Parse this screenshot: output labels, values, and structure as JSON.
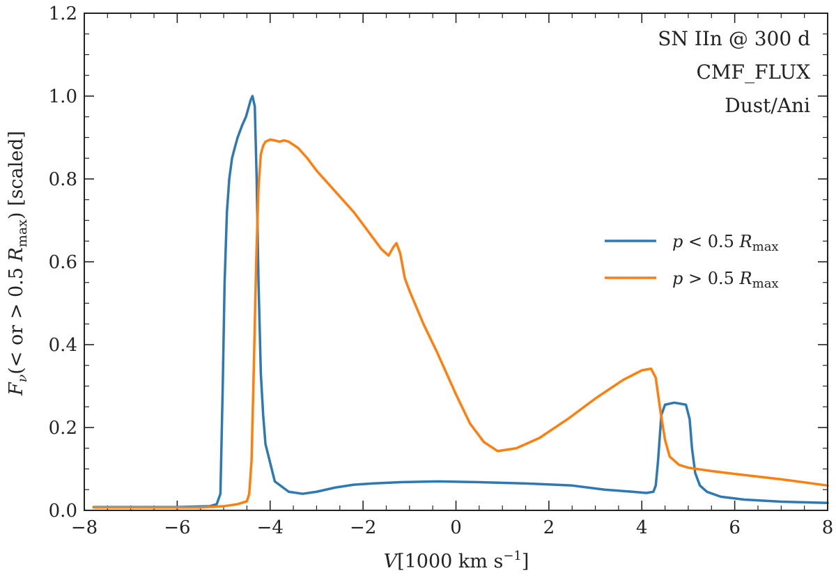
{
  "chart_data": {
    "type": "line",
    "title": "",
    "annotations": [
      "SN IIn @ 300 d",
      "CMF_FLUX",
      "Dust/Ani"
    ],
    "xlabel": {
      "symbol": "V",
      "text": "[1000 km s",
      "sup": "−1",
      "close": "]"
    },
    "ylabel": {
      "symbol": "F",
      "sub": "ν",
      "mid": "(< or > 0.5 ",
      "R": "R",
      "rsub": "max",
      "tail": ") [scaled]"
    },
    "xlim": [
      -8,
      8
    ],
    "ylim": [
      0,
      1.2
    ],
    "xticks": [
      -8,
      -6,
      -4,
      -2,
      0,
      2,
      4,
      6,
      8
    ],
    "xtick_labels": [
      "−8",
      "−6",
      "−4",
      "−2",
      "0",
      "2",
      "4",
      "6",
      "8"
    ],
    "yticks": [
      0.0,
      0.2,
      0.4,
      0.6,
      0.8,
      1.0,
      1.2
    ],
    "ytick_labels": [
      "0.0",
      "0.2",
      "0.4",
      "0.6",
      "0.8",
      "1.0",
      "1.2"
    ],
    "legend_position": "center-right",
    "series": [
      {
        "name": "p < 0.5 Rmax",
        "legend": {
          "p": "p",
          "rel": " < 0.5 ",
          "R": "R",
          "sub": "max"
        },
        "color": "#2e78b4",
        "x": [
          -7.8,
          -6.0,
          -5.3,
          -5.15,
          -5.07,
          -5.02,
          -4.98,
          -4.93,
          -4.88,
          -4.82,
          -4.75,
          -4.7,
          -4.6,
          -4.52,
          -4.47,
          -4.42,
          -4.38,
          -4.33,
          -4.29,
          -4.25,
          -4.2,
          -4.15,
          -4.1,
          -3.9,
          -3.6,
          -3.3,
          -3.0,
          -2.6,
          -2.2,
          -1.8,
          -1.2,
          -0.4,
          0.5,
          1.5,
          2.5,
          3.2,
          3.8,
          4.1,
          4.25,
          4.3,
          4.35,
          4.42,
          4.5,
          4.7,
          4.95,
          5.03,
          5.08,
          5.15,
          5.25,
          5.4,
          5.7,
          6.2,
          7.0,
          8.0
        ],
        "y": [
          0.008,
          0.008,
          0.01,
          0.015,
          0.04,
          0.3,
          0.55,
          0.72,
          0.8,
          0.85,
          0.88,
          0.9,
          0.93,
          0.95,
          0.97,
          0.99,
          1.0,
          0.975,
          0.8,
          0.55,
          0.33,
          0.23,
          0.16,
          0.07,
          0.045,
          0.04,
          0.045,
          0.055,
          0.062,
          0.065,
          0.068,
          0.07,
          0.068,
          0.065,
          0.06,
          0.05,
          0.045,
          0.042,
          0.045,
          0.06,
          0.12,
          0.23,
          0.255,
          0.26,
          0.255,
          0.22,
          0.15,
          0.09,
          0.06,
          0.045,
          0.033,
          0.026,
          0.021,
          0.018
        ]
      },
      {
        "name": "p > 0.5 Rmax",
        "legend": {
          "p": "p",
          "rel": " > 0.5 ",
          "R": "R",
          "sub": "max"
        },
        "color": "#ff7f0e",
        "x": [
          -7.8,
          -5.5,
          -5.0,
          -4.7,
          -4.5,
          -4.45,
          -4.4,
          -4.35,
          -4.3,
          -4.25,
          -4.2,
          -4.15,
          -4.1,
          -4.0,
          -3.9,
          -3.8,
          -3.7,
          -3.6,
          -3.4,
          -3.2,
          -3.0,
          -2.6,
          -2.2,
          -1.8,
          -1.6,
          -1.45,
          -1.35,
          -1.28,
          -1.2,
          -1.1,
          -1.0,
          -0.7,
          -0.4,
          0.0,
          0.3,
          0.6,
          0.9,
          1.3,
          1.8,
          2.4,
          3.0,
          3.6,
          4.0,
          4.2,
          4.3,
          4.4,
          4.5,
          4.6,
          4.8,
          5.0,
          5.5,
          6.0,
          7.0,
          8.0
        ],
        "y": [
          0.007,
          0.007,
          0.01,
          0.015,
          0.022,
          0.04,
          0.12,
          0.35,
          0.6,
          0.78,
          0.86,
          0.88,
          0.89,
          0.895,
          0.893,
          0.89,
          0.893,
          0.89,
          0.875,
          0.85,
          0.82,
          0.77,
          0.72,
          0.66,
          0.63,
          0.615,
          0.635,
          0.645,
          0.62,
          0.56,
          0.53,
          0.45,
          0.38,
          0.28,
          0.21,
          0.165,
          0.143,
          0.15,
          0.175,
          0.22,
          0.27,
          0.315,
          0.338,
          0.342,
          0.32,
          0.24,
          0.17,
          0.13,
          0.11,
          0.103,
          0.095,
          0.088,
          0.075,
          0.06
        ]
      }
    ]
  }
}
